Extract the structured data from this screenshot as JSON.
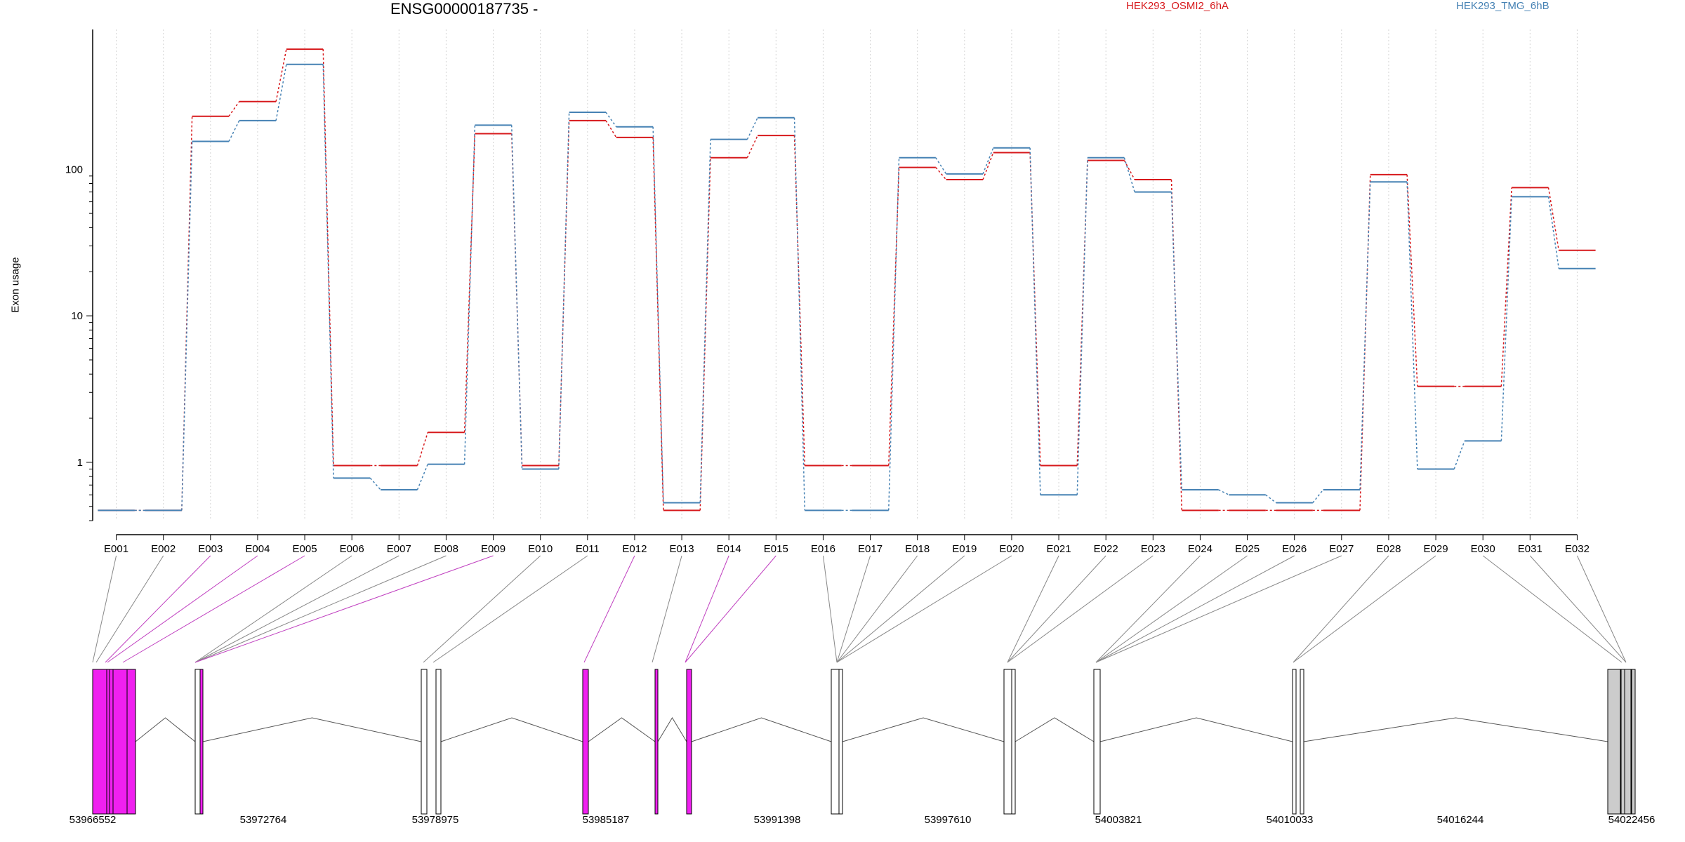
{
  "chart_data": {
    "type": "line",
    "title": "ENSG00000187735 -",
    "xlabel": "",
    "ylabel": "Exon usage",
    "y_scale": "log",
    "ylim": [
      0.4,
      900
    ],
    "y_ticks": [
      {
        "value": 1,
        "label": "1"
      },
      {
        "value": 10,
        "label": "10"
      },
      {
        "value": 100,
        "label": "100"
      }
    ],
    "grid": "vertical dotted",
    "legend_position": "top",
    "categories": [
      "E001",
      "E002",
      "E003",
      "E004",
      "E005",
      "E006",
      "E007",
      "E008",
      "E009",
      "E010",
      "E011",
      "E012",
      "E013",
      "E014",
      "E015",
      "E016",
      "E017",
      "E018",
      "E019",
      "E020",
      "E021",
      "E022",
      "E023",
      "E024",
      "E025",
      "E026",
      "E027",
      "E028",
      "E029",
      "E030",
      "E031",
      "E032"
    ],
    "series": [
      {
        "name": "HEK293_OSMI2_6hA",
        "color": "#d7191c",
        "values": [
          0.47,
          0.47,
          230,
          290,
          660,
          0.95,
          0.95,
          1.6,
          175,
          0.95,
          215,
          165,
          0.47,
          120,
          170,
          0.95,
          0.95,
          103,
          85,
          130,
          0.95,
          115,
          85,
          0.47,
          0.47,
          0.47,
          0.47,
          92,
          3.3,
          3.3,
          75,
          28
        ]
      },
      {
        "name": "HEK293_TMG_6hB",
        "color": "#4682b4",
        "values": [
          0.47,
          0.47,
          155,
          215,
          520,
          0.78,
          0.65,
          0.97,
          200,
          0.9,
          245,
          195,
          0.53,
          160,
          225,
          0.47,
          0.47,
          120,
          93,
          140,
          0.6,
          120,
          70,
          0.65,
          0.6,
          0.53,
          0.65,
          82,
          0.9,
          1.4,
          65,
          21
        ]
      }
    ],
    "gene_model": {
      "coordinate_labels": [
        "53966552",
        "53972764",
        "53978975",
        "53985187",
        "53991398",
        "53997610",
        "54003821",
        "54010033",
        "54016244",
        "54022456"
      ],
      "highlight_color": "#f020f0",
      "exon_highlighted": [
        false,
        false,
        true,
        true,
        true,
        false,
        false,
        false,
        true,
        false,
        false,
        true,
        false,
        true,
        true,
        false,
        false,
        false,
        false,
        false,
        false,
        false,
        false,
        false,
        false,
        false,
        false,
        false,
        false,
        false,
        false,
        false
      ]
    }
  }
}
